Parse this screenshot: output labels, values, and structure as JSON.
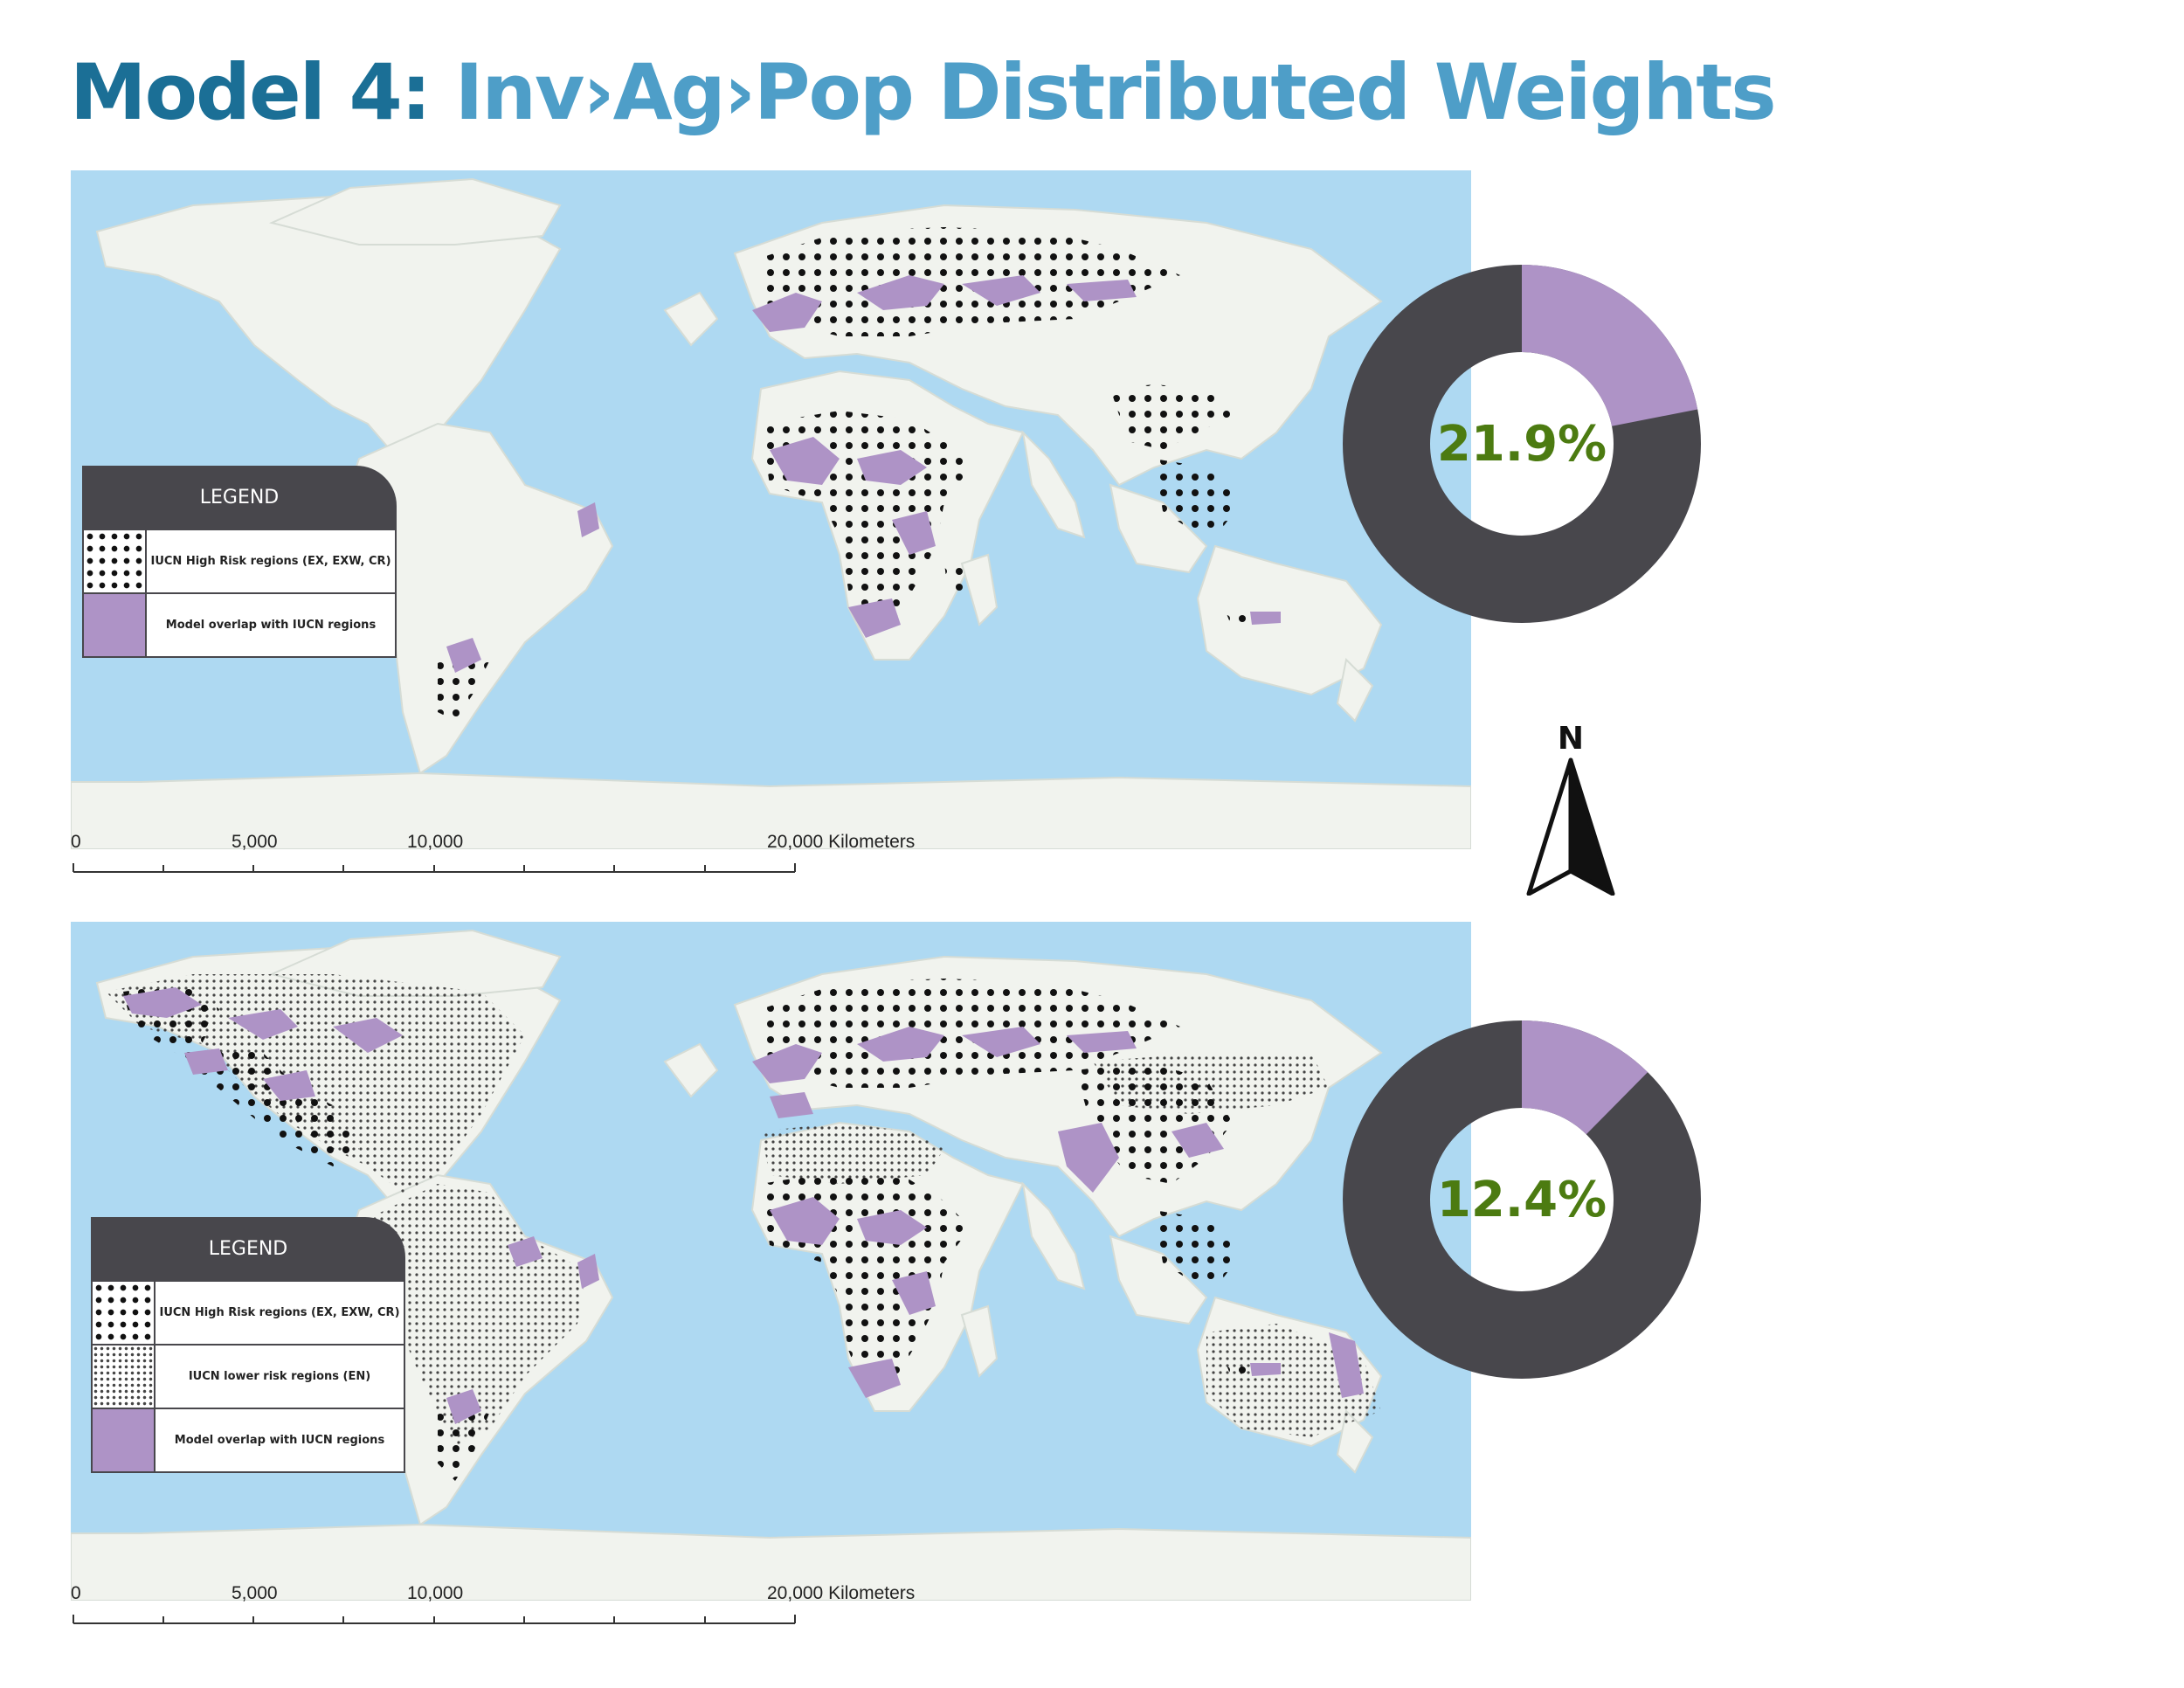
{
  "title": {
    "model": "Model 4:",
    "subtitle": "Inv›Ag›Pop Distributed Weights"
  },
  "colors": {
    "ocean": "#aed9f2",
    "land": "#f1f3ee",
    "overlap": "#ae93c6",
    "dots": "#111111",
    "donut_dark": "#48474c",
    "donut_accent": "#ae93c6",
    "percent_text": "#4c7b11",
    "title_dark": "#1b6f96",
    "title_light": "#4e9ec8"
  },
  "maps": [
    {
      "legend": {
        "title": "LEGEND",
        "items": [
          {
            "swatch": "high-risk-dots",
            "label": "IUCN High Risk regions (EX, EXW, CR)"
          },
          {
            "swatch": "overlap-purple",
            "label": "Model overlap with IUCN regions"
          }
        ]
      },
      "scale": {
        "labels": [
          "0",
          "5,000",
          "10,000",
          "20,000 Kilometers"
        ]
      },
      "donut": {
        "percent": 21.9,
        "label": "21.9%"
      }
    },
    {
      "legend": {
        "title": "LEGEND",
        "items": [
          {
            "swatch": "high-risk-dots",
            "label": "IUCN High Risk regions (EX, EXW, CR)"
          },
          {
            "swatch": "lower-risk-dots",
            "label": "IUCN lower risk regions (EN)"
          },
          {
            "swatch": "overlap-purple",
            "label": "Model overlap with IUCN regions"
          }
        ]
      },
      "scale": {
        "labels": [
          "0",
          "5,000",
          "10,000",
          "20,000 Kilometers"
        ]
      },
      "donut": {
        "percent": 12.4,
        "label": "12.4%"
      }
    }
  ],
  "north_arrow": {
    "label": "N"
  }
}
